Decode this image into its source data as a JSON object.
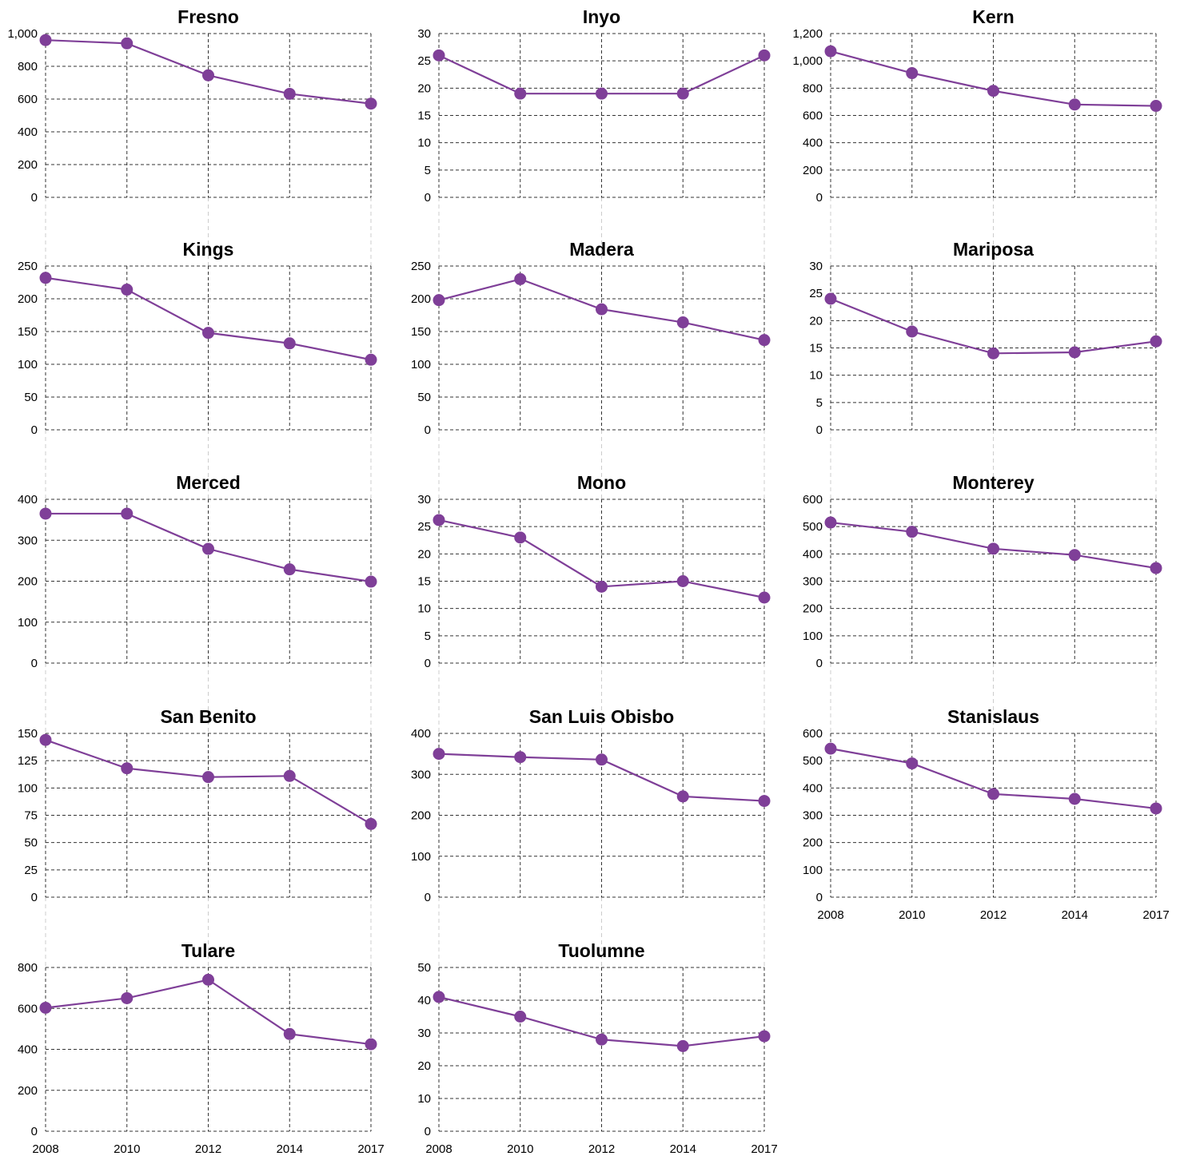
{
  "colors": {
    "series": "#7f3f98",
    "grid": "#333333",
    "guide": "#cccccc"
  },
  "chart_data": [
    {
      "type": "line",
      "title": "Fresno",
      "x": [
        "2008",
        "2010",
        "2012",
        "2014",
        "2017"
      ],
      "values": [
        960,
        940,
        745,
        632,
        572
      ],
      "ylim": [
        0,
        1000
      ],
      "yticks": [
        0,
        200,
        400,
        600,
        800,
        1000
      ],
      "ytick_labels": [
        "0",
        "200",
        "400",
        "600",
        "800",
        "1,000"
      ],
      "show_x_labels": false,
      "grid": true
    },
    {
      "type": "line",
      "title": "Inyo",
      "x": [
        "2008",
        "2010",
        "2012",
        "2014",
        "2017"
      ],
      "values": [
        26,
        19,
        19,
        19,
        26
      ],
      "ylim": [
        0,
        30
      ],
      "yticks": [
        0,
        5,
        10,
        15,
        20,
        25,
        30
      ],
      "ytick_labels": [
        "0",
        "5",
        "10",
        "15",
        "20",
        "25",
        "30"
      ],
      "show_x_labels": false,
      "grid": true
    },
    {
      "type": "line",
      "title": "Kern",
      "x": [
        "2008",
        "2010",
        "2012",
        "2014",
        "2017"
      ],
      "values": [
        1070,
        910,
        780,
        680,
        670
      ],
      "ylim": [
        0,
        1200
      ],
      "yticks": [
        0,
        200,
        400,
        600,
        800,
        1000,
        1200
      ],
      "ytick_labels": [
        "0",
        "200",
        "400",
        "600",
        "800",
        "1,000",
        "1,200"
      ],
      "show_x_labels": false,
      "grid": true
    },
    {
      "type": "line",
      "title": "Kings",
      "x": [
        "2008",
        "2010",
        "2012",
        "2014",
        "2017"
      ],
      "values": [
        232,
        214,
        148,
        132,
        107
      ],
      "ylim": [
        0,
        250
      ],
      "yticks": [
        0,
        50,
        100,
        150,
        200,
        250
      ],
      "ytick_labels": [
        "0",
        "50",
        "100",
        "150",
        "200",
        "250"
      ],
      "show_x_labels": false,
      "grid": true
    },
    {
      "type": "line",
      "title": "Madera",
      "x": [
        "2008",
        "2010",
        "2012",
        "2014",
        "2017"
      ],
      "values": [
        198,
        230,
        184,
        164,
        137
      ],
      "ylim": [
        0,
        250
      ],
      "yticks": [
        0,
        50,
        100,
        150,
        200,
        250
      ],
      "ytick_labels": [
        "0",
        "50",
        "100",
        "150",
        "200",
        "250"
      ],
      "show_x_labels": false,
      "grid": true
    },
    {
      "type": "line",
      "title": "Mariposa",
      "x": [
        "2008",
        "2010",
        "2012",
        "2014",
        "2017"
      ],
      "values": [
        24,
        18,
        14,
        14.2,
        16.2
      ],
      "ylim": [
        0,
        30
      ],
      "yticks": [
        0,
        5,
        10,
        15,
        20,
        25,
        30
      ],
      "ytick_labels": [
        "0",
        "5",
        "10",
        "15",
        "20",
        "25",
        "30"
      ],
      "show_x_labels": false,
      "grid": true
    },
    {
      "type": "line",
      "title": "Merced",
      "x": [
        "2008",
        "2010",
        "2012",
        "2014",
        "2017"
      ],
      "values": [
        365,
        365,
        279,
        229,
        199
      ],
      "ylim": [
        0,
        400
      ],
      "yticks": [
        0,
        100,
        200,
        300,
        400
      ],
      "ytick_labels": [
        "0",
        "100",
        "200",
        "300",
        "400"
      ],
      "show_x_labels": false,
      "grid": true
    },
    {
      "type": "line",
      "title": "Mono",
      "x": [
        "2008",
        "2010",
        "2012",
        "2014",
        "2017"
      ],
      "values": [
        26.2,
        23,
        14,
        15,
        12
      ],
      "ylim": [
        0,
        30
      ],
      "yticks": [
        0,
        5,
        10,
        15,
        20,
        25,
        30
      ],
      "ytick_labels": [
        "0",
        "5",
        "10",
        "15",
        "20",
        "25",
        "30"
      ],
      "show_x_labels": false,
      "grid": true
    },
    {
      "type": "line",
      "title": "Monterey",
      "x": [
        "2008",
        "2010",
        "2012",
        "2014",
        "2017"
      ],
      "values": [
        515,
        481,
        419,
        396,
        348
      ],
      "ylim": [
        0,
        600
      ],
      "yticks": [
        0,
        100,
        200,
        300,
        400,
        500,
        600
      ],
      "ytick_labels": [
        "0",
        "100",
        "200",
        "300",
        "400",
        "500",
        "600"
      ],
      "show_x_labels": false,
      "grid": true
    },
    {
      "type": "line",
      "title": "San Benito",
      "x": [
        "2008",
        "2010",
        "2012",
        "2014",
        "2017"
      ],
      "values": [
        144,
        118,
        110,
        111,
        67
      ],
      "ylim": [
        0,
        150
      ],
      "yticks": [
        0,
        25,
        50,
        75,
        100,
        125,
        150
      ],
      "ytick_labels": [
        "0",
        "25",
        "50",
        "75",
        "100",
        "125",
        "150"
      ],
      "show_x_labels": false,
      "grid": true
    },
    {
      "type": "line",
      "title": "San Luis Obisbo",
      "x": [
        "2008",
        "2010",
        "2012",
        "2014",
        "2017"
      ],
      "values": [
        350,
        342,
        336,
        246,
        235
      ],
      "ylim": [
        0,
        400
      ],
      "yticks": [
        0,
        100,
        200,
        300,
        400
      ],
      "ytick_labels": [
        "0",
        "100",
        "200",
        "300",
        "400"
      ],
      "show_x_labels": false,
      "grid": true
    },
    {
      "type": "line",
      "title": "Stanislaus",
      "x": [
        "2008",
        "2010",
        "2012",
        "2014",
        "2017"
      ],
      "values": [
        544,
        490,
        378,
        360,
        325
      ],
      "ylim": [
        0,
        600
      ],
      "yticks": [
        0,
        100,
        200,
        300,
        400,
        500,
        600
      ],
      "ytick_labels": [
        "0",
        "100",
        "200",
        "300",
        "400",
        "500",
        "600"
      ],
      "show_x_labels": true,
      "grid": true
    },
    {
      "type": "line",
      "title": "Tulare",
      "x": [
        "2008",
        "2010",
        "2012",
        "2014",
        "2017"
      ],
      "values": [
        603,
        650,
        740,
        475,
        425
      ],
      "ylim": [
        0,
        800
      ],
      "yticks": [
        0,
        200,
        400,
        600,
        800
      ],
      "ytick_labels": [
        "0",
        "200",
        "400",
        "600",
        "800"
      ],
      "show_x_labels": true,
      "grid": true
    },
    {
      "type": "line",
      "title": "Tuolumne",
      "x": [
        "2008",
        "2010",
        "2012",
        "2014",
        "2017"
      ],
      "values": [
        41,
        35,
        28,
        26,
        29
      ],
      "ylim": [
        0,
        50
      ],
      "yticks": [
        0,
        10,
        20,
        30,
        40,
        50
      ],
      "ytick_labels": [
        "0",
        "10",
        "20",
        "30",
        "40",
        "50"
      ],
      "show_x_labels": true,
      "grid": true
    }
  ]
}
